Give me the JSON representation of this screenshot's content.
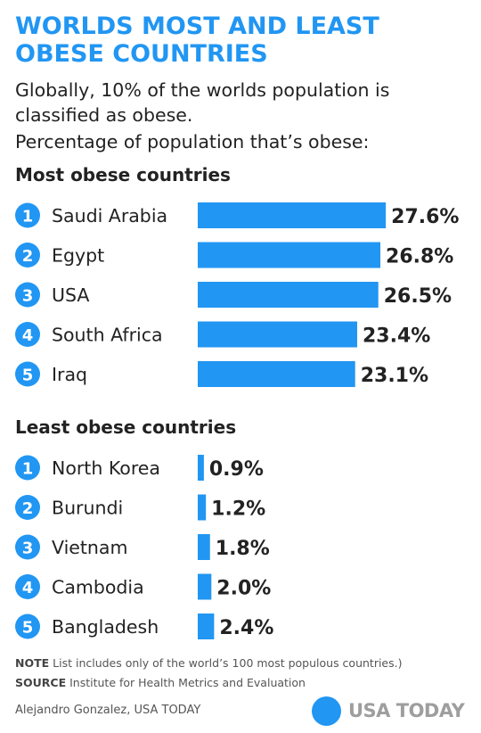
{
  "header": {
    "title": "WORLDS MOST AND LEAST OBESE COUNTRIES",
    "subtitle": "Globally, 10% of the worlds population is classified as obese.",
    "subtitle2": "Percentage of population that’s obese:"
  },
  "colors": {
    "accent": "#2196f3",
    "text": "#222222",
    "logo_text": "#9e9e9e"
  },
  "chart_data": [
    {
      "type": "bar",
      "orientation": "horizontal",
      "title": "Most obese countries",
      "unit": "%",
      "categories": [
        "Saudi Arabia",
        "Egypt",
        "USA",
        "South Africa",
        "Iraq"
      ],
      "ranks": [
        "1",
        "2",
        "3",
        "4",
        "5"
      ],
      "values": [
        27.6,
        26.8,
        26.5,
        23.4,
        23.1
      ],
      "labels": [
        "27.6%",
        "26.8%",
        "26.5%",
        "23.4%",
        "23.1%"
      ]
    },
    {
      "type": "bar",
      "orientation": "horizontal",
      "title": "Least obese countries",
      "unit": "%",
      "categories": [
        "North Korea",
        "Burundi",
        "Vietnam",
        "Cambodia",
        "Bangladesh"
      ],
      "ranks": [
        "1",
        "2",
        "3",
        "4",
        "5"
      ],
      "values": [
        0.9,
        1.2,
        1.8,
        2.0,
        2.4
      ],
      "labels": [
        "0.9%",
        "1.2%",
        "1.8%",
        "2.0%",
        "2.4%"
      ]
    }
  ],
  "footer": {
    "note_label": "NOTE",
    "note_text": "List includes only of the world’s 100 most populous countries.)",
    "source_label": "SOURCE",
    "source_text": "Institute for Health Metrics and Evaluation",
    "credit": "Alejandro Gonzalez, USA TODAY",
    "logo_text": "USA TODAY"
  }
}
